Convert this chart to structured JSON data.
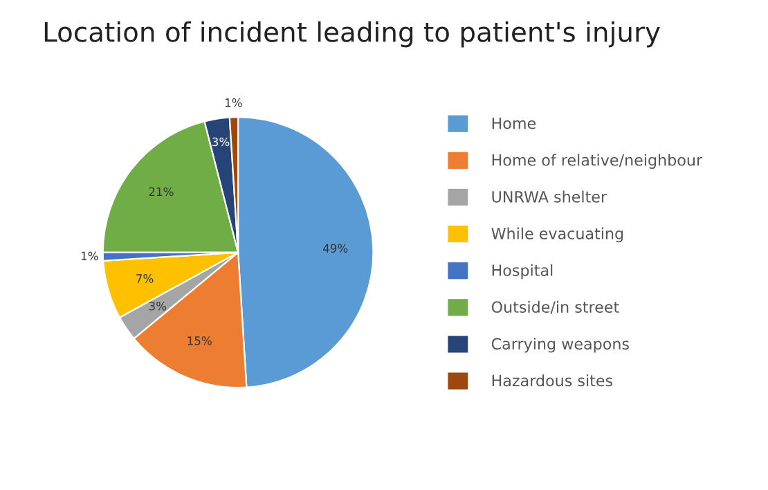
{
  "chart_data": {
    "type": "pie",
    "title": "Location of incident leading to patient's injury",
    "categories": [
      "Home",
      "Home of relative/neighbour",
      "UNRWA shelter",
      "While evacuating",
      "Hospital",
      "Outside/in street",
      "Carrying weapons",
      "Hazardous sites"
    ],
    "values": [
      49,
      15,
      3,
      7,
      1,
      21,
      3,
      1
    ],
    "colors": [
      "#5b9bd5",
      "#ed7d31",
      "#a5a5a5",
      "#ffc000",
      "#4472c4",
      "#70ad47",
      "#264478",
      "#9e480e"
    ],
    "value_labels": [
      "49%",
      "15%",
      "3%",
      "7%",
      "1%",
      "21%",
      "3%",
      "1%"
    ],
    "legend": "right"
  }
}
